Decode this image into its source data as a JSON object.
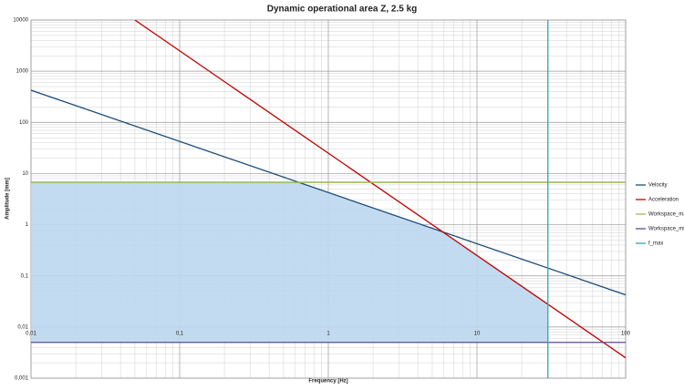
{
  "chart_data": {
    "type": "line",
    "title": "Dynamic operational area Z, 2.5 kg",
    "x_label": "Frequency [Hz]",
    "y_label": "Amplitude [mm]",
    "log_x": true,
    "log_y": true,
    "grid": true,
    "minor_grid": true,
    "legend": "right",
    "xlim": [
      0.01,
      100
    ],
    "ylim": [
      0.001,
      10000
    ],
    "xticks": [
      {
        "value": 0.01,
        "label": "0,01"
      },
      {
        "value": 0.1,
        "label": "0,1"
      },
      1,
      10,
      100
    ],
    "yticks": [
      {
        "value": 0.001,
        "label": "0,001"
      },
      {
        "value": 0.01,
        "label": "0,01"
      },
      {
        "value": 0.1,
        "label": "0,1"
      },
      1,
      10,
      100,
      1000,
      10000
    ],
    "fill_color": "#bdd7ee",
    "series": [
      {
        "name": "Velocity",
        "color": "#1f4e79",
        "x": [
          0.01,
          100
        ],
        "values": [
          425,
          0.0425
        ]
      },
      {
        "name": "Acceleration",
        "color": "#c00000",
        "x": [
          0.05,
          100
        ],
        "values": [
          10000,
          0.0025
        ]
      },
      {
        "name": "Workspace_max",
        "color": "#9bbb59",
        "x": [
          0.01,
          100
        ],
        "values": [
          6.7,
          6.7
        ]
      },
      {
        "name": "Workspace_min",
        "color": "#5b4a8b",
        "x": [
          0.01,
          100
        ],
        "values": [
          0.005,
          0.005
        ]
      },
      {
        "name": "f_max",
        "color": "#31a6b5",
        "x": [
          30,
          30
        ],
        "values": [
          0.001,
          10000
        ]
      }
    ]
  }
}
